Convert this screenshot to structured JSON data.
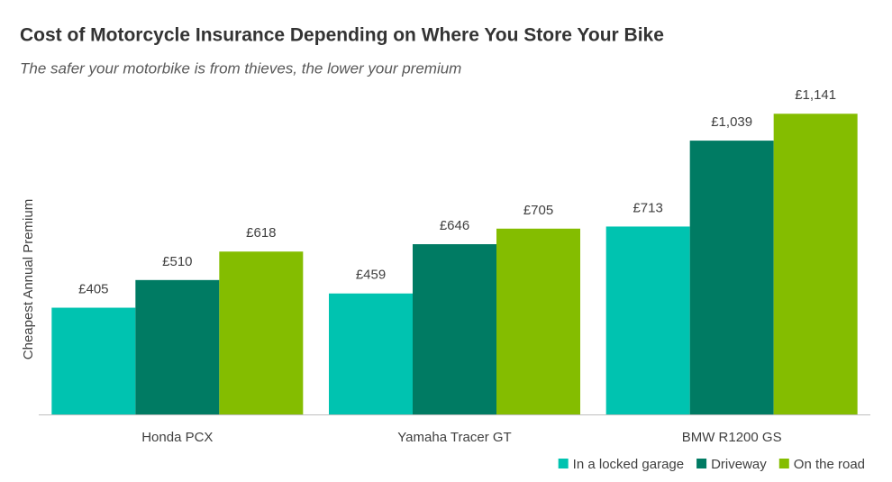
{
  "chart_data": {
    "type": "bar",
    "title": "Cost of Motorcycle Insurance Depending on Where You Store Your Bike",
    "subtitle": "The safer your motorbike is from thieves, the lower your premium",
    "y_label": "Cheapest Annual Premium",
    "categories": [
      "Honda PCX",
      "Yamaha Tracer GT",
      "BMW R1200 GS"
    ],
    "series": [
      {
        "name": "In a locked garage",
        "color": "#00c3b0",
        "values": [
          405,
          459,
          713
        ],
        "value_labels": [
          "£405",
          "£459",
          "£713"
        ]
      },
      {
        "name": "Driveway",
        "color": "#007b63",
        "values": [
          510,
          646,
          1039
        ],
        "value_labels": [
          "£510",
          "£646",
          "£1,039"
        ]
      },
      {
        "name": "On the road",
        "color": "#84bd00",
        "values": [
          618,
          705,
          1141
        ],
        "value_labels": [
          "£618",
          "£705",
          "£1,141"
        ]
      }
    ],
    "ylim": [
      0,
      1200
    ],
    "legend": "bottom-right"
  }
}
